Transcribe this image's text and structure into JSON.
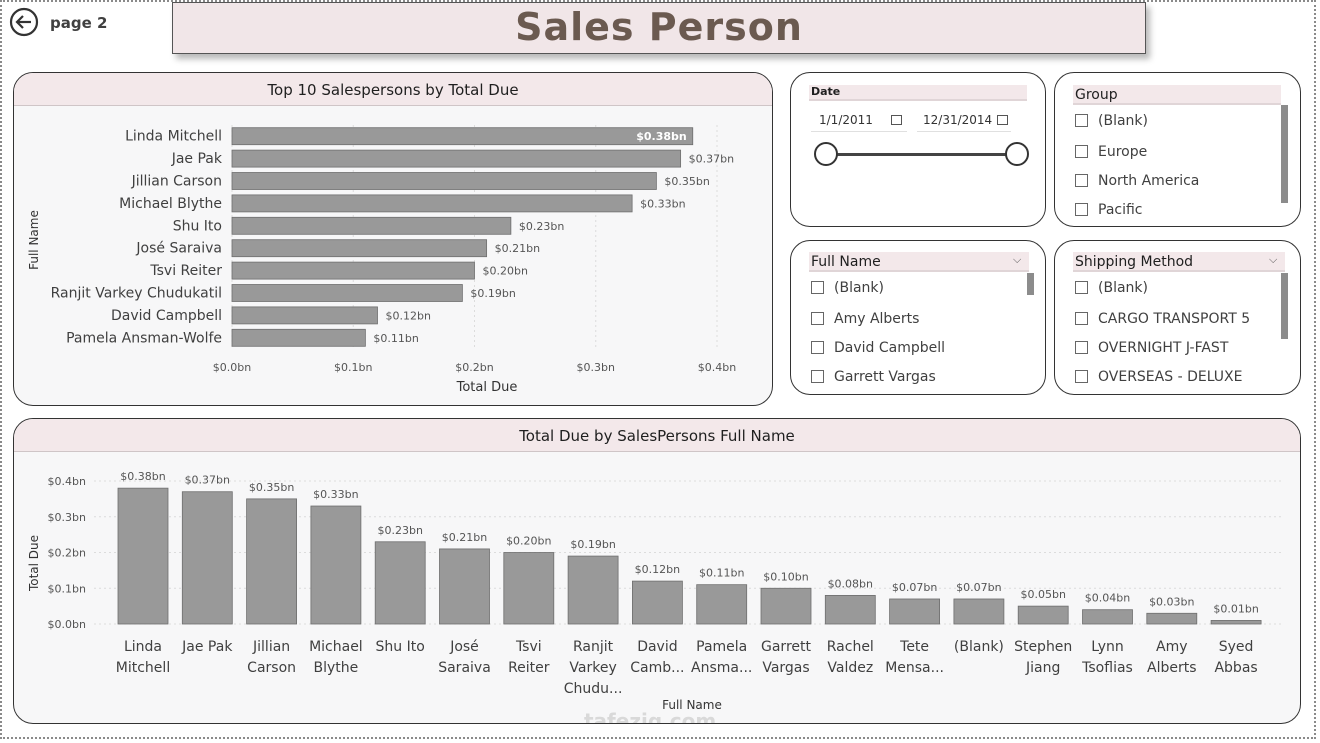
{
  "nav": {
    "back_icon": "arrow-left-circle-icon",
    "page_label": "page 2"
  },
  "header": {
    "title": "Sales Person"
  },
  "top_chart": {
    "title": "Top 10 Salespersons by Total Due",
    "ylabel": "Full Name",
    "xlabel": "Total Due",
    "ticks": [
      "$0.0bn",
      "$0.1bn",
      "$0.2bn",
      "$0.3bn",
      "$0.4bn"
    ]
  },
  "bottom_chart": {
    "title": "Total Due by SalesPersons Full Name",
    "ylabel": "Total Due",
    "xlabel": "Full Name",
    "ticks": [
      "$0.0bn",
      "$0.1bn",
      "$0.2bn",
      "$0.3bn",
      "$0.4bn"
    ]
  },
  "date_slicer": {
    "title": "Date",
    "start": "1/1/2011",
    "end": "12/31/2014",
    "icon": "calendar-icon"
  },
  "group_slicer": {
    "title": "Group",
    "items": [
      "(Blank)",
      "Europe",
      "North America",
      "Pacific"
    ]
  },
  "name_slicer": {
    "title": "Full Name",
    "items": [
      "(Blank)",
      "Amy Alberts",
      "David Campbell",
      "Garrett Vargas"
    ]
  },
  "shipping_slicer": {
    "title": "Shipping Method",
    "items": [
      "(Blank)",
      "CARGO TRANSPORT 5",
      "OVERNIGHT J-FAST",
      "OVERSEAS - DELUXE"
    ]
  },
  "watermark": {
    "text": "tafeziq.com"
  },
  "chart_data": [
    {
      "type": "bar",
      "orientation": "horizontal",
      "title": "Top 10 Salespersons by Total Due",
      "xlabel": "Total Due",
      "ylabel": "Full Name",
      "xlim": [
        0,
        0.4
      ],
      "categories": [
        "Linda Mitchell",
        "Jae Pak",
        "Jillian Carson",
        "Michael Blythe",
        "Shu Ito",
        "José Saraiva",
        "Tsvi Reiter",
        "Ranjit Varkey Chudukatil",
        "David Campbell",
        "Pamela Ansman-Wolfe"
      ],
      "values": [
        0.38,
        0.37,
        0.35,
        0.33,
        0.23,
        0.21,
        0.2,
        0.19,
        0.12,
        0.11
      ],
      "labels": [
        "$0.38bn",
        "$0.37bn",
        "$0.35bn",
        "$0.33bn",
        "$0.23bn",
        "$0.21bn",
        "$0.20bn",
        "$0.19bn",
        "$0.12bn",
        "$0.11bn"
      ],
      "grid": true,
      "color": "#999999"
    },
    {
      "type": "bar",
      "orientation": "vertical",
      "title": "Total Due by SalesPersons Full Name",
      "xlabel": "Full Name",
      "ylabel": "Total Due",
      "ylim": [
        0,
        0.4
      ],
      "categories": [
        [
          "Linda",
          "Mitchell"
        ],
        [
          "Jae Pak"
        ],
        [
          "Jillian",
          "Carson"
        ],
        [
          "Michael",
          "Blythe"
        ],
        [
          "Shu Ito"
        ],
        [
          "José",
          "Saraiva"
        ],
        [
          "Tsvi",
          "Reiter"
        ],
        [
          "Ranjit",
          "Varkey",
          "Chudu..."
        ],
        [
          "David",
          "Camb..."
        ],
        [
          "Pamela",
          "Ansma..."
        ],
        [
          "Garrett",
          "Vargas"
        ],
        [
          "Rachel",
          "Valdez"
        ],
        [
          "Tete",
          "Mensa..."
        ],
        [
          "(Blank)"
        ],
        [
          "Stephen",
          "Jiang"
        ],
        [
          "Lynn",
          "Tsoflias"
        ],
        [
          "Amy",
          "Alberts"
        ],
        [
          "Syed",
          "Abbas"
        ]
      ],
      "values": [
        0.38,
        0.37,
        0.35,
        0.33,
        0.23,
        0.21,
        0.2,
        0.19,
        0.12,
        0.11,
        0.1,
        0.08,
        0.07,
        0.07,
        0.05,
        0.04,
        0.03,
        0.01
      ],
      "labels": [
        "$0.38bn",
        "$0.37bn",
        "$0.35bn",
        "$0.33bn",
        "$0.23bn",
        "$0.21bn",
        "$0.20bn",
        "$0.19bn",
        "$0.12bn",
        "$0.11bn",
        "$0.10bn",
        "$0.08bn",
        "$0.07bn",
        "$0.07bn",
        "$0.05bn",
        "$0.04bn",
        "$0.03bn",
        "$0.01bn"
      ],
      "grid": true,
      "color": "#999999"
    }
  ]
}
